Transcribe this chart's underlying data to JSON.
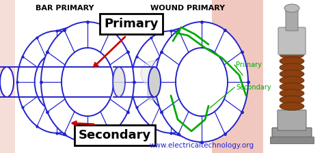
{
  "bg_left": "#ffffff",
  "bg_pink": "#f0c8c0",
  "bg_right": "#ffffff",
  "title_bar_primary": "BAR PRIMARY",
  "title_wound_primary": "WOUND PRIMARY",
  "label_primary": "Primary",
  "label_secondary": "Secondary",
  "label_primary_small": "Primary",
  "label_secondary_small": "Secondary",
  "website": "www.electricaltechnology.org",
  "blue": "#2222cc",
  "dark_blue": "#000066",
  "green": "#00aa00",
  "red": "#cc0000",
  "white": "#ffffff",
  "light_gray": "#bbbbbb",
  "black": "#000000",
  "torus_bg": "#ffffff"
}
